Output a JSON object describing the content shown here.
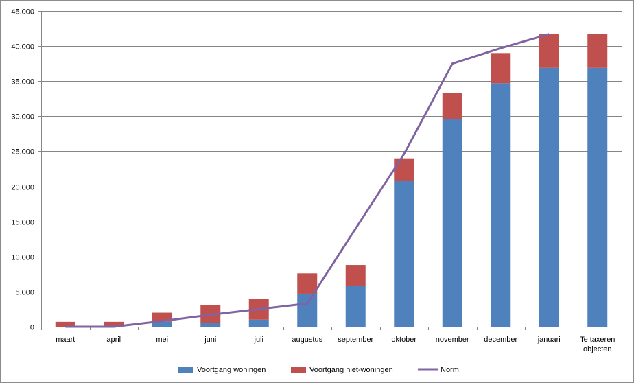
{
  "chart_data": {
    "type": "bar",
    "stacked": true,
    "categories": [
      "maart",
      "april",
      "mei",
      "juni",
      "juli",
      "augustus",
      "september",
      "oktober",
      "november",
      "december",
      "januari",
      "Te taxeren objecten"
    ],
    "series": [
      {
        "name": "Voortgang woningen",
        "kind": "bar",
        "color": "#4F81BD",
        "values": [
          0,
          0,
          700,
          500,
          1000,
          4700,
          5800,
          20800,
          29600,
          34700,
          36900,
          36900
        ]
      },
      {
        "name": "Voortgang niet-woningen",
        "kind": "bar",
        "color": "#C0504D",
        "values": [
          700,
          700,
          1300,
          2600,
          3000,
          2900,
          3000,
          3200,
          3700,
          4300,
          4800,
          4800
        ]
      },
      {
        "name": "Norm",
        "kind": "line",
        "color": "#8064A2",
        "values": [
          0,
          0,
          800,
          1700,
          2500,
          3300,
          14000,
          24600,
          37500,
          39700,
          41700,
          null
        ]
      }
    ],
    "ylim": [
      0,
      45000
    ],
    "yticks": [
      "0",
      "5.000",
      "10.000",
      "15.000",
      "20.000",
      "25.000",
      "30.000",
      "35.000",
      "40.000",
      "45.000"
    ],
    "ytick_values": [
      0,
      5000,
      10000,
      15000,
      20000,
      25000,
      30000,
      35000,
      40000,
      45000
    ],
    "grid": true,
    "legend_position": "bottom",
    "title": "",
    "xlabel": "",
    "ylabel": ""
  }
}
